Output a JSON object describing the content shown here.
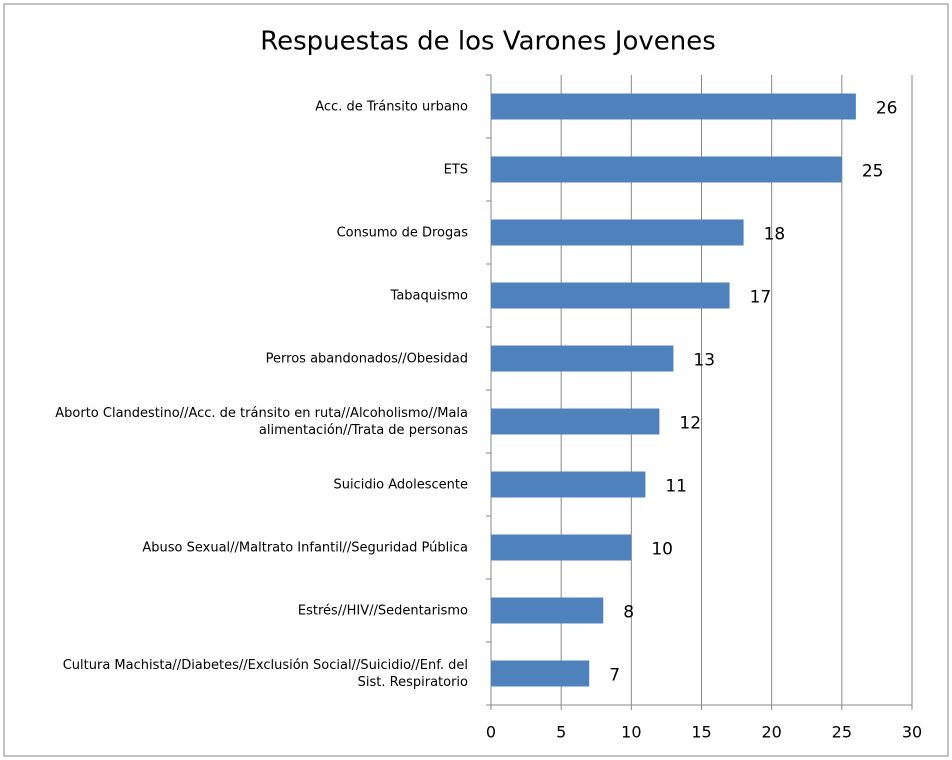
{
  "chart_data": {
    "type": "bar",
    "orientation": "horizontal",
    "title": "Respuestas de los Varones Jovenes",
    "categories": [
      "Acc. de Tránsito urbano",
      "ETS",
      "Consumo de Drogas",
      "Tabaquismo",
      "Perros abandonados//Obesidad",
      "Aborto Clandestino//Acc. de tránsito en ruta//Alcoholismo//Mala alimentación//Trata de personas",
      "Suicidio Adolescente",
      "Abuso Sexual//Maltrato Infantil//Seguridad Pública",
      "Estrés//HIV//Sedentarismo",
      "Cultura Machista//Diabetes//Exclusión Social//Suicidio//Enf. del Sist. Respiratorio"
    ],
    "values": [
      26,
      25,
      18,
      17,
      13,
      12,
      11,
      10,
      8,
      7
    ],
    "color": "#4f81bd",
    "xlim": [
      0,
      30
    ],
    "xticks": [
      0,
      5,
      10,
      15,
      20,
      25,
      30
    ],
    "grid": true
  }
}
